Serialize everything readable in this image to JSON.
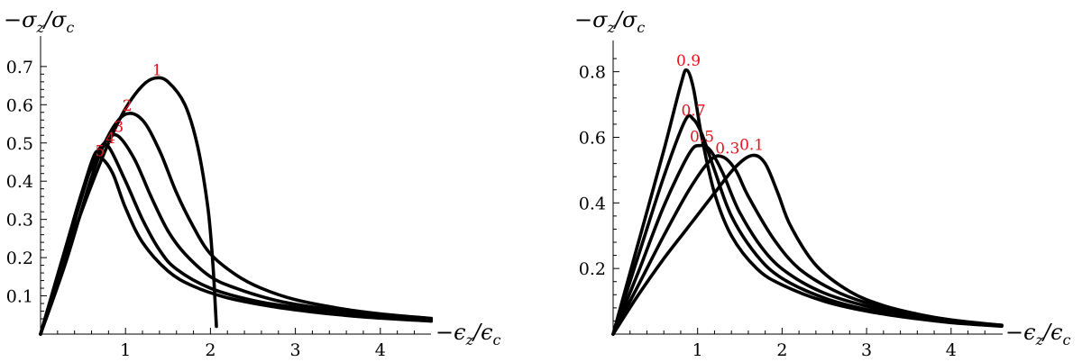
{
  "chart_data": [
    {
      "type": "line",
      "title": "",
      "xlabel": "−ϵz/ϵc",
      "ylabel": "−σz/σc",
      "xlim": [
        0,
        4.6
      ],
      "ylim": [
        0,
        0.72
      ],
      "xticks": [
        1,
        2,
        3,
        4
      ],
      "xtick_labels": [
        "1",
        "2",
        "3",
        "4"
      ],
      "yticks": [
        0.1,
        0.2,
        0.3,
        0.4,
        0.5,
        0.6,
        0.7
      ],
      "ytick_labels": [
        "0.1",
        "0.2",
        "0.3",
        "0.4",
        "0.5",
        "0.6",
        "0.7"
      ],
      "grid": false,
      "line_color": "#000000",
      "label_color": "#e8121c",
      "series": [
        {
          "name": "1",
          "x": [
            0,
            0.2,
            0.4,
            0.6,
            0.8,
            1.0,
            1.2,
            1.35,
            1.5,
            1.7,
            1.85,
            1.97,
            2.03,
            2.06,
            2.07
          ],
          "y": [
            0,
            0.14,
            0.27,
            0.39,
            0.5,
            0.59,
            0.65,
            0.67,
            0.66,
            0.6,
            0.49,
            0.33,
            0.18,
            0.06,
            0.02
          ]
        },
        {
          "name": "2",
          "x": [
            0,
            0.3,
            0.6,
            0.8,
            1.0,
            1.2,
            1.4,
            1.6,
            1.8,
            2.0,
            2.3,
            2.6,
            3.0,
            3.5,
            4.0,
            4.6
          ],
          "y": [
            0,
            0.19,
            0.41,
            0.52,
            0.575,
            0.56,
            0.48,
            0.37,
            0.28,
            0.21,
            0.155,
            0.12,
            0.09,
            0.068,
            0.053,
            0.041
          ]
        },
        {
          "name": "3",
          "x": [
            0,
            0.3,
            0.6,
            0.75,
            0.9,
            1.1,
            1.3,
            1.5,
            1.7,
            2.0,
            2.3,
            2.7,
            3.0,
            3.5,
            4.0,
            4.6
          ],
          "y": [
            0,
            0.22,
            0.44,
            0.5,
            0.52,
            0.46,
            0.36,
            0.27,
            0.21,
            0.15,
            0.12,
            0.092,
            0.078,
            0.062,
            0.05,
            0.04
          ]
        },
        {
          "name": "4",
          "x": [
            0,
            0.3,
            0.6,
            0.7,
            0.8,
            1.0,
            1.2,
            1.4,
            1.6,
            2.0,
            2.5,
            3.0,
            3.5,
            4.0,
            4.6
          ],
          "y": [
            0,
            0.23,
            0.45,
            0.48,
            0.49,
            0.4,
            0.3,
            0.22,
            0.17,
            0.12,
            0.088,
            0.07,
            0.057,
            0.047,
            0.037
          ]
        },
        {
          "name": "5",
          "x": [
            0,
            0.3,
            0.5,
            0.65,
            0.72,
            0.85,
            1.0,
            1.2,
            1.5,
            1.8,
            2.2,
            2.7,
            3.2,
            3.8,
            4.6
          ],
          "y": [
            0,
            0.23,
            0.38,
            0.455,
            0.46,
            0.42,
            0.33,
            0.24,
            0.165,
            0.125,
            0.095,
            0.073,
            0.058,
            0.045,
            0.034
          ]
        }
      ]
    },
    {
      "type": "line",
      "title": "",
      "xlabel": "−ϵz/ϵc",
      "ylabel": "−σz/σc",
      "xlim": [
        0,
        4.6
      ],
      "ylim": [
        0,
        0.85
      ],
      "xticks": [
        1,
        2,
        3,
        4
      ],
      "xtick_labels": [
        "1",
        "2",
        "3",
        "4"
      ],
      "yticks": [
        0.2,
        0.4,
        0.6,
        0.8
      ],
      "ytick_labels": [
        "0.2",
        "0.4",
        "0.6",
        "0.8"
      ],
      "grid": false,
      "line_color": "#000000",
      "label_color": "#e8121c",
      "series": [
        {
          "name": "0.9",
          "x": [
            0,
            0.3,
            0.6,
            0.8,
            0.87,
            0.95,
            1.05,
            1.2,
            1.4,
            1.7,
            2.0,
            2.5,
            3.0,
            3.5,
            4.0,
            4.6
          ],
          "y": [
            0,
            0.28,
            0.56,
            0.76,
            0.805,
            0.75,
            0.6,
            0.43,
            0.3,
            0.2,
            0.15,
            0.1,
            0.07,
            0.05,
            0.035,
            0.024
          ]
        },
        {
          "name": "0.7",
          "x": [
            0,
            0.3,
            0.6,
            0.85,
            0.95,
            1.05,
            1.2,
            1.4,
            1.7,
            2.0,
            2.5,
            3.0,
            3.5,
            4.0,
            4.6
          ],
          "y": [
            0,
            0.24,
            0.48,
            0.65,
            0.655,
            0.61,
            0.5,
            0.36,
            0.24,
            0.17,
            0.11,
            0.075,
            0.054,
            0.038,
            0.025
          ]
        },
        {
          "name": "0.5",
          "x": [
            0,
            0.3,
            0.6,
            0.9,
            1.03,
            1.15,
            1.3,
            1.5,
            1.8,
            2.1,
            2.5,
            3.0,
            3.5,
            4.0,
            4.6
          ],
          "y": [
            0,
            0.19,
            0.39,
            0.55,
            0.575,
            0.56,
            0.49,
            0.37,
            0.25,
            0.18,
            0.125,
            0.085,
            0.058,
            0.04,
            0.026
          ]
        },
        {
          "name": "0.3",
          "x": [
            0,
            0.3,
            0.6,
            0.9,
            1.15,
            1.3,
            1.45,
            1.6,
            1.9,
            2.2,
            2.6,
            3.0,
            3.5,
            4.0,
            4.6
          ],
          "y": [
            0,
            0.15,
            0.3,
            0.44,
            0.53,
            0.54,
            0.5,
            0.42,
            0.29,
            0.2,
            0.135,
            0.095,
            0.064,
            0.043,
            0.027
          ]
        },
        {
          "name": "0.1",
          "x": [
            0,
            0.3,
            0.6,
            0.9,
            1.2,
            1.45,
            1.65,
            1.8,
            1.95,
            2.1,
            2.4,
            2.8,
            3.2,
            3.7,
            4.2,
            4.6
          ],
          "y": [
            0,
            0.12,
            0.23,
            0.33,
            0.43,
            0.51,
            0.545,
            0.52,
            0.43,
            0.33,
            0.21,
            0.13,
            0.087,
            0.056,
            0.036,
            0.027
          ]
        }
      ]
    }
  ]
}
